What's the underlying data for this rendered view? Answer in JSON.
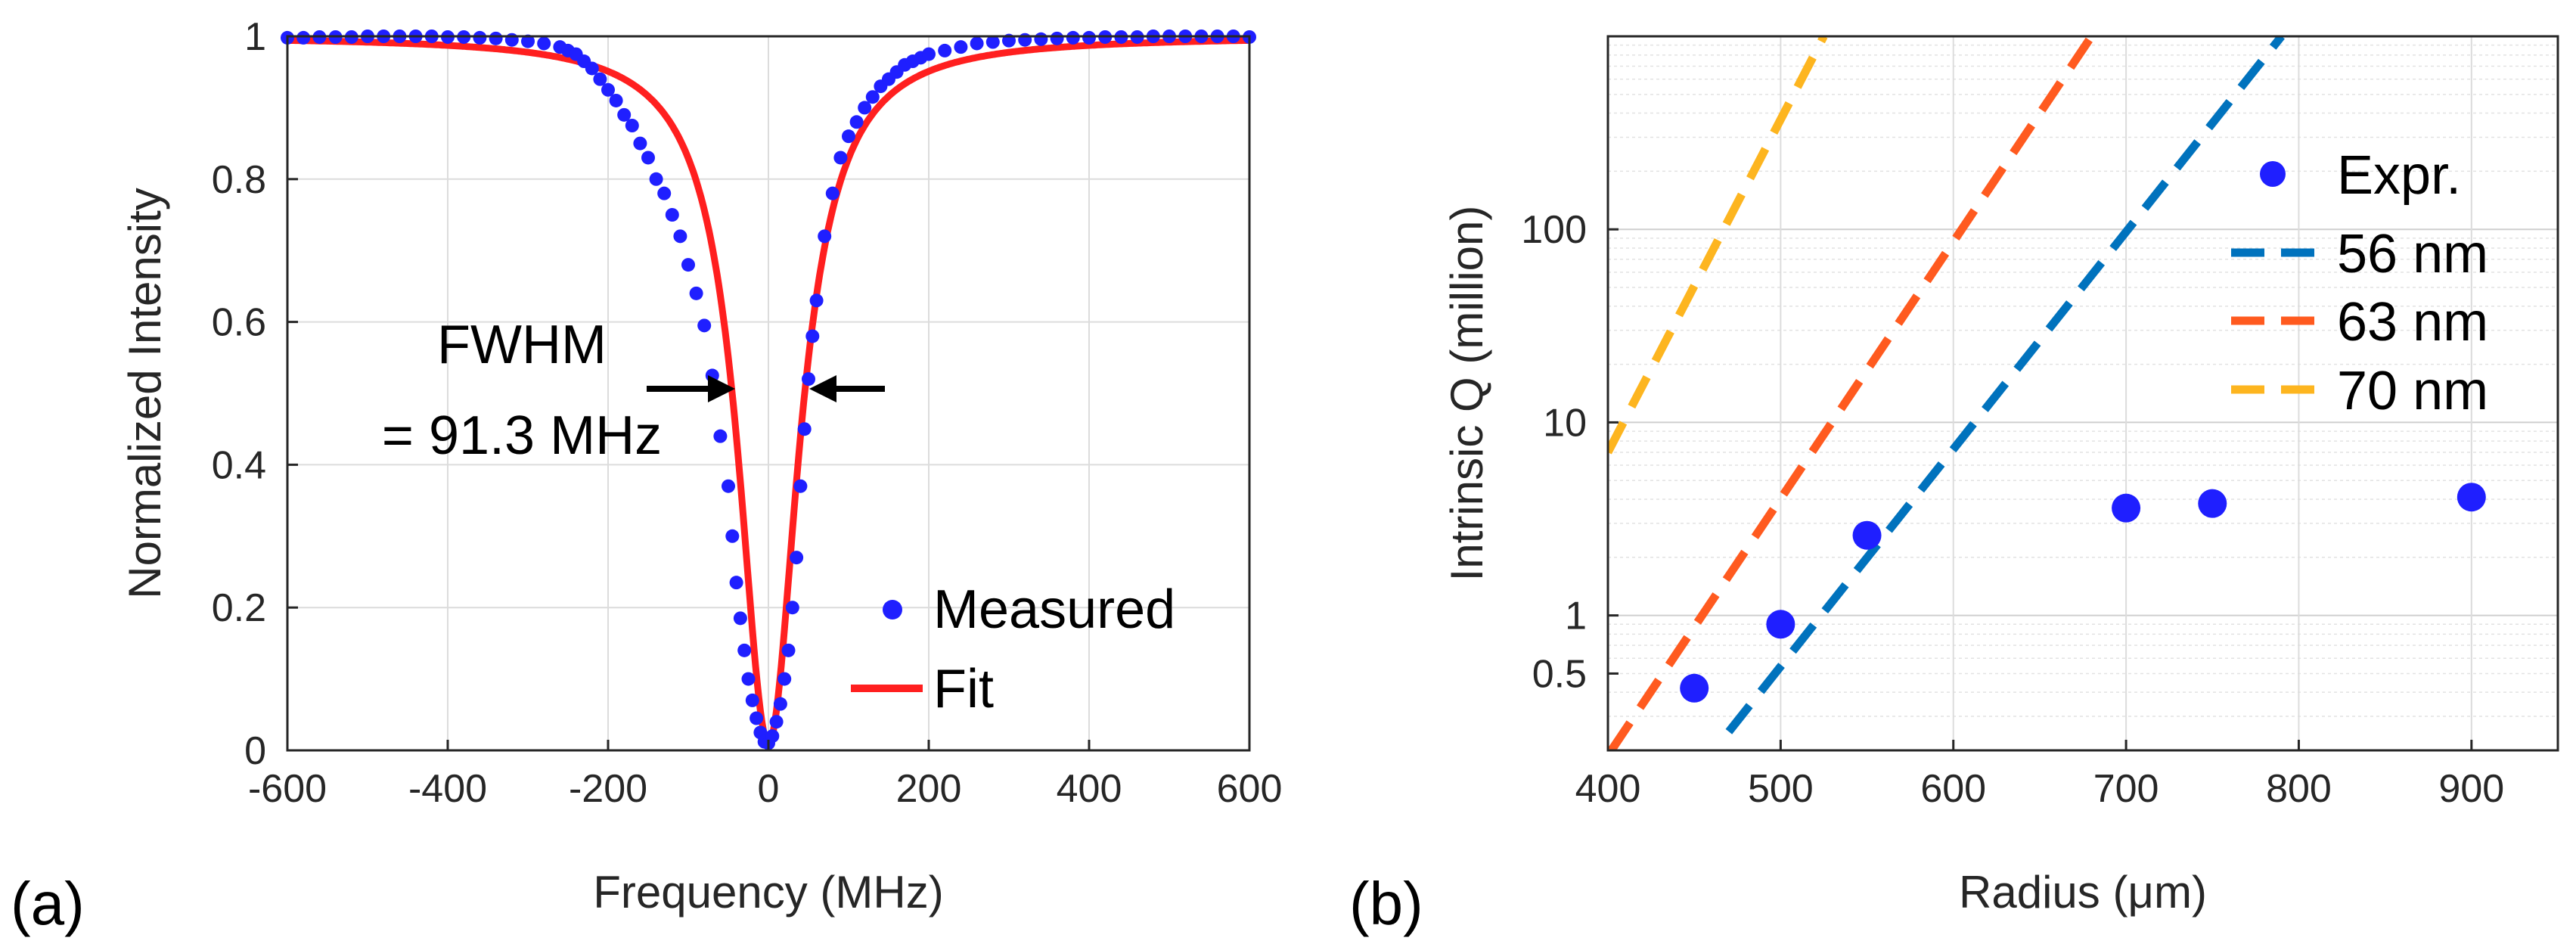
{
  "chart_data": [
    {
      "type": "scatter",
      "panel_label": "(a)",
      "xlabel": "Frequency (MHz)",
      "ylabel": "Normalized Intensity",
      "xlim": [
        -600,
        600
      ],
      "ylim": [
        0,
        1
      ],
      "xticks": [
        -600,
        -400,
        -200,
        0,
        200,
        400,
        600
      ],
      "xtick_labels": [
        "-600",
        "-400",
        "-200",
        "0",
        "200",
        "400",
        "600"
      ],
      "yticks": [
        0,
        0.2,
        0.4,
        0.6,
        0.8,
        1
      ],
      "ytick_labels": [
        "0",
        "0.2",
        "0.4",
        "0.6",
        "0.8",
        "1"
      ],
      "grid": true,
      "legend_position": "bottom-right",
      "annotation_lines": [
        "FWHM",
        "= 91.3 MHz"
      ],
      "fwhm_mhz": 91.3,
      "series": [
        {
          "name": "Measured",
          "kind": "scatter",
          "color": "#1f1fff",
          "x": [
            -600,
            -580,
            -560,
            -540,
            -520,
            -500,
            -480,
            -460,
            -440,
            -420,
            -400,
            -380,
            -360,
            -340,
            -320,
            -300,
            -280,
            -260,
            -250,
            -240,
            -230,
            -220,
            -210,
            -200,
            -190,
            -180,
            -170,
            -160,
            -150,
            -140,
            -130,
            -120,
            -110,
            -100,
            -90,
            -80,
            -70,
            -60,
            -50,
            -45,
            -40,
            -35,
            -30,
            -25,
            -20,
            -15,
            -10,
            -5,
            0,
            5,
            10,
            15,
            20,
            25,
            30,
            35,
            40,
            45,
            50,
            55,
            60,
            70,
            80,
            90,
            100,
            110,
            120,
            130,
            140,
            150,
            160,
            170,
            180,
            190,
            200,
            220,
            240,
            260,
            280,
            300,
            320,
            340,
            360,
            380,
            400,
            420,
            440,
            460,
            480,
            500,
            520,
            540,
            560,
            580,
            600
          ],
          "y": [
            0.998,
            0.998,
            0.999,
            0.999,
            0.999,
            1.0,
            1.0,
            1.0,
            1.0,
            1.0,
            0.999,
            0.999,
            0.998,
            0.997,
            0.995,
            0.993,
            0.99,
            0.985,
            0.98,
            0.975,
            0.965,
            0.955,
            0.94,
            0.925,
            0.91,
            0.89,
            0.875,
            0.85,
            0.83,
            0.8,
            0.78,
            0.75,
            0.72,
            0.68,
            0.64,
            0.595,
            0.525,
            0.44,
            0.37,
            0.3,
            0.235,
            0.185,
            0.14,
            0.1,
            0.07,
            0.045,
            0.025,
            0.012,
            0.01,
            0.02,
            0.04,
            0.065,
            0.1,
            0.14,
            0.2,
            0.27,
            0.37,
            0.45,
            0.52,
            0.58,
            0.63,
            0.72,
            0.78,
            0.83,
            0.86,
            0.88,
            0.9,
            0.915,
            0.93,
            0.94,
            0.95,
            0.96,
            0.965,
            0.97,
            0.975,
            0.98,
            0.985,
            0.99,
            0.992,
            0.994,
            0.995,
            0.996,
            0.997,
            0.998,
            0.998,
            0.999,
            0.999,
            0.999,
            1.0,
            1.0,
            1.0,
            1.0,
            1.0,
            1.0,
            0.999
          ]
        },
        {
          "name": "Fit",
          "kind": "line",
          "color": "#ff1f1f",
          "center": 0,
          "fwhm": 91.3,
          "depth": 0.99
        }
      ]
    },
    {
      "type": "scatter",
      "panel_label": "(b)",
      "xlabel": "Radius (μm)",
      "ylabel": "Intrinsic Q (million)",
      "xscale": "linear",
      "yscale": "log",
      "xlim": [
        400,
        950
      ],
      "ylim": [
        0.2,
        1000
      ],
      "xticks": [
        400,
        500,
        600,
        700,
        800,
        900
      ],
      "xtick_labels": [
        "400",
        "500",
        "600",
        "700",
        "800",
        "900"
      ],
      "yticks": [
        0.5,
        1,
        10,
        100
      ],
      "ytick_labels": [
        "0.5",
        "1",
        "10",
        "100"
      ],
      "grid": true,
      "legend_position": "top-right",
      "series": [
        {
          "name": "Expr.",
          "kind": "scatter",
          "color": "#1f1fff",
          "x": [
            450,
            500,
            550,
            700,
            750,
            900
          ],
          "y": [
            0.42,
            0.9,
            2.6,
            3.6,
            3.8,
            4.1
          ]
        },
        {
          "name": "56 nm",
          "kind": "dashed",
          "color": "#0072bd",
          "x": [
            470,
            790
          ],
          "y": [
            0.25,
            1000
          ]
        },
        {
          "name": "63 nm",
          "kind": "dashed",
          "color": "#ff5a1f",
          "x": [
            402,
            680
          ],
          "y": [
            0.2,
            1000
          ]
        },
        {
          "name": "70 nm",
          "kind": "dashed",
          "color": "#fdb51f",
          "x": [
            400,
            525
          ],
          "y": [
            7,
            1000
          ]
        }
      ]
    }
  ]
}
